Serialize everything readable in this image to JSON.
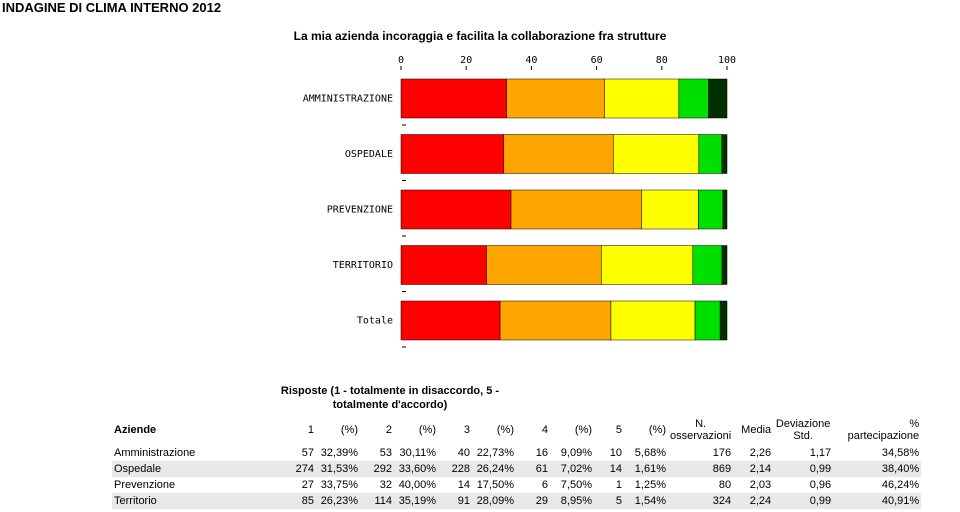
{
  "header": {
    "title": "INDAGINE DI CLIMA INTERNO 2012"
  },
  "chart_data": {
    "type": "bar",
    "orientation": "horizontal",
    "stacked": true,
    "title": "La mia azienda incoraggia e facilita la collaborazione fra strutture",
    "categories": [
      "AMMINISTRAZIONE",
      "OSPEDALE",
      "PREVENZIONE",
      "TERRITORIO",
      "Totale"
    ],
    "series": [
      {
        "color": "#ff0000",
        "values": [
          32.39,
          31.53,
          33.75,
          26.23,
          30.4
        ]
      },
      {
        "color": "#ffa500",
        "values": [
          30.11,
          33.6,
          40.0,
          35.19,
          34.0
        ]
      },
      {
        "color": "#ffff00",
        "values": [
          22.73,
          26.24,
          17.5,
          28.09,
          25.8
        ]
      },
      {
        "color": "#00e000",
        "values": [
          9.09,
          7.02,
          7.5,
          8.95,
          7.7
        ]
      },
      {
        "color": "#003000",
        "values": [
          5.68,
          1.61,
          1.25,
          1.54,
          2.1
        ]
      }
    ],
    "xlim": [
      0,
      100
    ],
    "xticks": [
      0,
      20,
      40,
      60,
      80,
      100
    ]
  },
  "table": {
    "caption": "Risposte (1 - totalmente in disaccordo, 5 - totalmente d'accordo)",
    "columns": [
      "Aziende",
      "1",
      "(%)",
      "2",
      "(%)",
      "3",
      "(%)",
      "4",
      "(%)",
      "5",
      "(%)",
      "N. osservazioni",
      "Media",
      "Deviazione Std.",
      "% partecipazione"
    ],
    "rows": [
      [
        "Amministrazione",
        "57",
        "32,39%",
        "53",
        "30,11%",
        "40",
        "22,73%",
        "16",
        "9,09%",
        "10",
        "5,68%",
        "176",
        "2,26",
        "1,17",
        "34,58%"
      ],
      [
        "Ospedale",
        "274",
        "31,53%",
        "292",
        "33,60%",
        "228",
        "26,24%",
        "61",
        "7,02%",
        "14",
        "1,61%",
        "869",
        "2,14",
        "0,99",
        "38,40%"
      ],
      [
        "Prevenzione",
        "27",
        "33,75%",
        "32",
        "40,00%",
        "14",
        "17,50%",
        "6",
        "7,50%",
        "1",
        "1,25%",
        "80",
        "2,03",
        "0,96",
        "46,24%"
      ],
      [
        "Territorio",
        "85",
        "26,23%",
        "114",
        "35,19%",
        "91",
        "28,09%",
        "29",
        "8,95%",
        "5",
        "1,54%",
        "324",
        "2,24",
        "0,99",
        "40,91%"
      ]
    ]
  }
}
